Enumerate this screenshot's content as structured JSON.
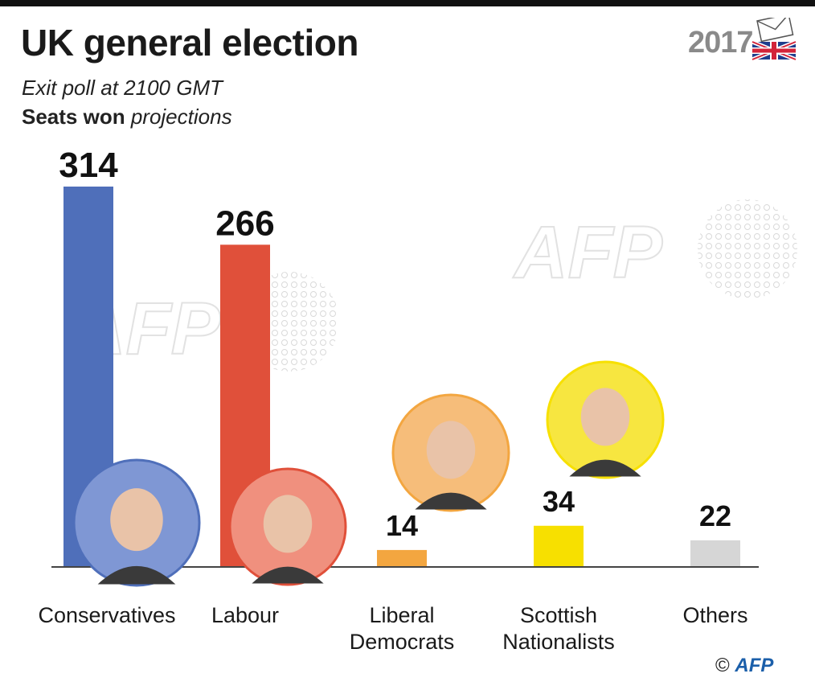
{
  "header": {
    "title": "UK general election",
    "subtitle": "Exit poll at 2100 GMT",
    "metric_bold": "Seats won",
    "metric_italic": "projections",
    "year": "2017"
  },
  "chart_data": {
    "type": "bar",
    "title": "UK general election",
    "subtitle": "Exit poll at 2100 GMT — Seats won projections",
    "xlabel": "",
    "ylabel": "Seats won",
    "ylim": [
      0,
      320
    ],
    "categories": [
      "Conservatives",
      "Labour",
      "Liberal Democrats",
      "Scottish Nationalists",
      "Others"
    ],
    "label_lines": [
      [
        "Conservatives"
      ],
      [
        "Labour"
      ],
      [
        "Liberal",
        "Democrats"
      ],
      [
        "Scottish",
        "Nationalists"
      ],
      [
        "Others"
      ]
    ],
    "values": [
      314,
      266,
      14,
      34,
      22
    ],
    "colors": [
      "#4f6fba",
      "#e0503a",
      "#f3a640",
      "#f7e000",
      "#d6d6d6"
    ],
    "portrait_colors": [
      "#7f97d4",
      "#f0907e",
      "#f6bd7a",
      "#f7e640"
    ],
    "grid": false,
    "legend": "none"
  },
  "watermark": "AFP",
  "credit": {
    "symbol": "©",
    "agency": "AFP"
  }
}
